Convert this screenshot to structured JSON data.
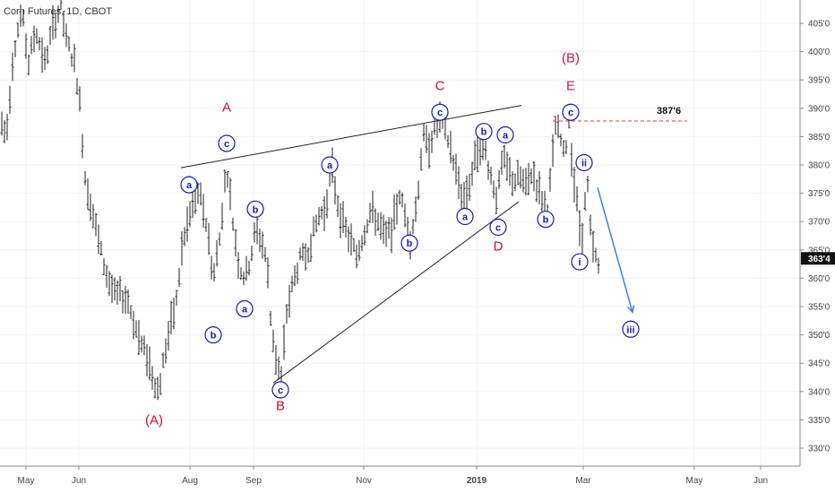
{
  "chart_data": {
    "type": "ohlc",
    "title": "Corn Futures, 1D, CBOT",
    "x_labels": [
      "May",
      "Jun",
      "Aug",
      "Sep",
      "Nov",
      "2019",
      "Mar",
      "May",
      "Jun"
    ],
    "ylim": [
      326,
      409
    ],
    "y_ticks": [
      "405'0",
      "400'0",
      "395'0",
      "390'0",
      "385'0",
      "380'0",
      "375'0",
      "370'0",
      "365'0",
      "360'0",
      "355'0",
      "350'0",
      "345'0",
      "340'0",
      "335'0",
      "330'0"
    ],
    "y_values": [
      405,
      400,
      395,
      390,
      385,
      380,
      375,
      370,
      365,
      360,
      355,
      350,
      345,
      340,
      335,
      330
    ],
    "last_price": 363.5,
    "last_price_label": "363'4",
    "resistance_level": 387.75,
    "resistance_label": "387'6",
    "price_path": [
      [
        0,
        388
      ],
      [
        7,
        385
      ],
      [
        15,
        400
      ],
      [
        24,
        407
      ],
      [
        32,
        398
      ],
      [
        40,
        404
      ],
      [
        50,
        398
      ],
      [
        60,
        405
      ],
      [
        68,
        408
      ],
      [
        74,
        402
      ],
      [
        83,
        398
      ],
      [
        88,
        393
      ],
      [
        95,
        378
      ],
      [
        103,
        372
      ],
      [
        112,
        365
      ],
      [
        120,
        360
      ],
      [
        128,
        357
      ],
      [
        136,
        357
      ],
      [
        143,
        356
      ],
      [
        150,
        352
      ],
      [
        158,
        348
      ],
      [
        165,
        346
      ],
      [
        170,
        343
      ],
      [
        177,
        340
      ],
      [
        184,
        347
      ],
      [
        191,
        352
      ],
      [
        197,
        356
      ],
      [
        203,
        365
      ],
      [
        210,
        370
      ],
      [
        217,
        374
      ],
      [
        225,
        374
      ],
      [
        232,
        368
      ],
      [
        238,
        360
      ],
      [
        245,
        367
      ],
      [
        253,
        380
      ],
      [
        260,
        370
      ],
      [
        267,
        362
      ],
      [
        274,
        360
      ],
      [
        280,
        364
      ],
      [
        286,
        369
      ],
      [
        293,
        366
      ],
      [
        298,
        363
      ],
      [
        302,
        353
      ],
      [
        308,
        346
      ],
      [
        314,
        342
      ],
      [
        320,
        354
      ],
      [
        327,
        359
      ],
      [
        334,
        363
      ],
      [
        341,
        364
      ],
      [
        348,
        367
      ],
      [
        356,
        371
      ],
      [
        363,
        372
      ],
      [
        370,
        380
      ],
      [
        376,
        374
      ],
      [
        382,
        370
      ],
      [
        390,
        367
      ],
      [
        398,
        364
      ],
      [
        406,
        368
      ],
      [
        414,
        372
      ],
      [
        422,
        370
      ],
      [
        430,
        367
      ],
      [
        438,
        369
      ],
      [
        446,
        375
      ],
      [
        452,
        371
      ],
      [
        458,
        367
      ],
      [
        465,
        373
      ],
      [
        472,
        385
      ],
      [
        478,
        383
      ],
      [
        484,
        386
      ],
      [
        491,
        388
      ],
      [
        497,
        386
      ],
      [
        503,
        383
      ],
      [
        510,
        378
      ],
      [
        517,
        374
      ],
      [
        523,
        376
      ],
      [
        529,
        380
      ],
      [
        535,
        384
      ],
      [
        541,
        383
      ],
      [
        548,
        378
      ],
      [
        555,
        374
      ],
      [
        561,
        381
      ],
      [
        567,
        379
      ],
      [
        573,
        377
      ],
      [
        580,
        378
      ],
      [
        587,
        376
      ],
      [
        594,
        379
      ],
      [
        600,
        376
      ],
      [
        605,
        374
      ],
      [
        610,
        371
      ],
      [
        615,
        378
      ],
      [
        620,
        387
      ],
      [
        625,
        385
      ],
      [
        630,
        381
      ],
      [
        635,
        388
      ],
      [
        640,
        378
      ],
      [
        645,
        372
      ],
      [
        649,
        366
      ],
      [
        652,
        372
      ],
      [
        656,
        376
      ],
      [
        660,
        366
      ],
      [
        664,
        364
      ],
      [
        668,
        362
      ]
    ],
    "trendlines": [
      {
        "from": [
          202,
          379.5
        ],
        "to": [
          582,
          390.5
        ]
      },
      {
        "from": [
          305,
          341.5
        ],
        "to": [
          579,
          373.5
        ]
      }
    ],
    "forecast_arrow": {
      "from": [
        667,
        376
      ],
      "to": [
        706,
        354
      ]
    },
    "labels_red": [
      {
        "text": "A",
        "x": 253,
        "price": 390.2
      },
      {
        "text": "C",
        "x": 491,
        "price": 394.0
      },
      {
        "text": "B",
        "x": 313,
        "price": 337.5
      },
      {
        "text": "D",
        "x": 556,
        "price": 365.7
      },
      {
        "text": "(A)",
        "x": 172,
        "price": 335.0
      }
    ],
    "labels_magenta": [
      {
        "text": "(B)",
        "x": 637,
        "price": 398.9
      },
      {
        "text": "E",
        "x": 637,
        "price": 394.0
      }
    ],
    "circle_labels": [
      {
        "text": "c",
        "x": 253,
        "price": 383.8
      },
      {
        "text": "a",
        "x": 211,
        "price": 376.5
      },
      {
        "text": "b",
        "x": 285,
        "price": 372.2
      },
      {
        "text": "b",
        "x": 238,
        "price": 350.0
      },
      {
        "text": "a",
        "x": 273,
        "price": 354.6
      },
      {
        "text": "c",
        "x": 313,
        "price": 340.3
      },
      {
        "text": "a",
        "x": 368,
        "price": 380.0
      },
      {
        "text": "b",
        "x": 457,
        "price": 366.2
      },
      {
        "text": "c",
        "x": 491,
        "price": 389.3
      },
      {
        "text": "b",
        "x": 540,
        "price": 385.9
      },
      {
        "text": "a",
        "x": 564,
        "price": 385.3
      },
      {
        "text": "a",
        "x": 519,
        "price": 370.9
      },
      {
        "text": "c",
        "x": 556,
        "price": 369.0
      },
      {
        "text": "b",
        "x": 609,
        "price": 370.4
      },
      {
        "text": "c",
        "x": 637,
        "price": 389.3
      },
      {
        "text": "ii",
        "x": 652,
        "price": 380.4
      },
      {
        "text": "i",
        "x": 647,
        "price": 362.9
      },
      {
        "text": "iii",
        "x": 704,
        "price": 351.0
      }
    ]
  }
}
